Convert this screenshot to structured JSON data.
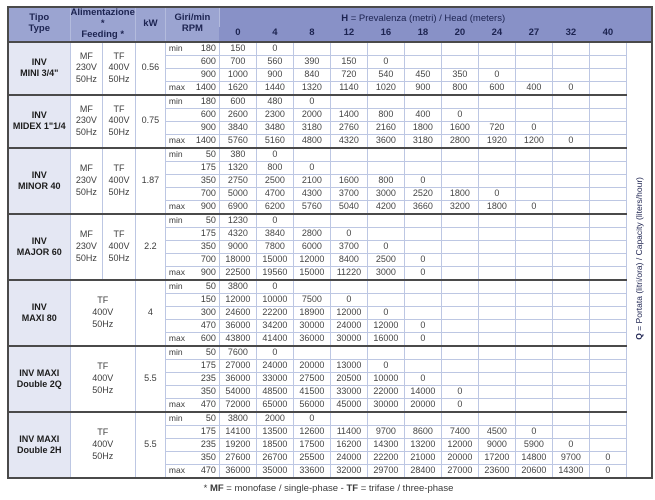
{
  "header": {
    "tipo": [
      "Tipo",
      "Type"
    ],
    "alimentazione": [
      "Alimentazione *",
      "Feeding *"
    ],
    "kw": "kW",
    "rpm": [
      "Giri/min",
      "RPM"
    ],
    "head_title_prefix": "H",
    "head_title_rest": " = Prevalenza (metri) / Head (meters)",
    "head_columns": [
      "0",
      "4",
      "8",
      "12",
      "16",
      "18",
      "20",
      "24",
      "27",
      "32",
      "40"
    ],
    "q_label_prefix": "Q",
    "q_label_rest": " = Portata (litri/ora) / Capacity (liters/hour)"
  },
  "footer": {
    "seg_star": "* ",
    "seg_mf": "MF",
    "seg_mf_text": " = monofase / single-phase - ",
    "seg_tf": "TF",
    "seg_tf_text": " = trifase / three-phase"
  },
  "colors": {
    "header_left_bg": "#9ba4d1",
    "header_band_bg": "#8891c7",
    "model_cell_bg": "#e4e7f3",
    "grid_light": "#bdc7e3",
    "grid_dark": "#4a4a4a",
    "header_text": "#1c2350"
  },
  "table": {
    "blocks": [
      {
        "model": [
          "INV",
          "MINI 3/4\""
        ],
        "feeding": {
          "mf": [
            "MF",
            "230V",
            "50Hz"
          ],
          "tf": [
            "TF",
            "400V",
            "50Hz"
          ]
        },
        "kw": "0.56",
        "rows": [
          {
            "tag": "min",
            "rpm": "180",
            "values": [
              "150",
              "0",
              "",
              "",
              "",
              "",
              "",
              "",
              "",
              "",
              ""
            ]
          },
          {
            "tag": "",
            "rpm": "600",
            "values": [
              "700",
              "560",
              "390",
              "150",
              "0",
              "",
              "",
              "",
              "",
              "",
              ""
            ]
          },
          {
            "tag": "",
            "rpm": "900",
            "values": [
              "1000",
              "900",
              "840",
              "720",
              "540",
              "450",
              "350",
              "0",
              "",
              "",
              ""
            ]
          },
          {
            "tag": "max",
            "rpm": "1400",
            "values": [
              "1620",
              "1440",
              "1320",
              "1140",
              "1020",
              "900",
              "800",
              "600",
              "400",
              "0",
              ""
            ]
          }
        ]
      },
      {
        "model": [
          "INV",
          "MIDEX 1\"1/4"
        ],
        "feeding": {
          "mf": [
            "MF",
            "230V",
            "50Hz"
          ],
          "tf": [
            "TF",
            "400V",
            "50Hz"
          ]
        },
        "kw": "0.75",
        "rows": [
          {
            "tag": "min",
            "rpm": "180",
            "values": [
              "600",
              "480",
              "0",
              "",
              "",
              "",
              "",
              "",
              "",
              "",
              ""
            ]
          },
          {
            "tag": "",
            "rpm": "600",
            "values": [
              "2600",
              "2300",
              "2000",
              "1400",
              "800",
              "400",
              "0",
              "",
              "",
              "",
              ""
            ]
          },
          {
            "tag": "",
            "rpm": "900",
            "values": [
              "3840",
              "3480",
              "3180",
              "2760",
              "2160",
              "1800",
              "1600",
              "720",
              "0",
              "",
              ""
            ]
          },
          {
            "tag": "max",
            "rpm": "1400",
            "values": [
              "5760",
              "5160",
              "4800",
              "4320",
              "3600",
              "3180",
              "2800",
              "1920",
              "1200",
              "0",
              ""
            ]
          }
        ]
      },
      {
        "model": [
          "INV",
          "MINOR 40"
        ],
        "feeding": {
          "mf": [
            "MF",
            "230V",
            "50Hz"
          ],
          "tf": [
            "TF",
            "400V",
            "50Hz"
          ]
        },
        "kw": "1.87",
        "rows": [
          {
            "tag": "min",
            "rpm": "50",
            "values": [
              "380",
              "0",
              "",
              "",
              "",
              "",
              "",
              "",
              "",
              "",
              ""
            ]
          },
          {
            "tag": "",
            "rpm": "175",
            "values": [
              "1320",
              "800",
              "0",
              "",
              "",
              "",
              "",
              "",
              "",
              "",
              ""
            ]
          },
          {
            "tag": "",
            "rpm": "350",
            "values": [
              "2750",
              "2500",
              "2100",
              "1600",
              "800",
              "0",
              "",
              "",
              "",
              "",
              ""
            ]
          },
          {
            "tag": "",
            "rpm": "700",
            "values": [
              "5000",
              "4700",
              "4300",
              "3700",
              "3000",
              "2520",
              "1800",
              "0",
              "",
              "",
              ""
            ]
          },
          {
            "tag": "max",
            "rpm": "900",
            "values": [
              "6900",
              "6200",
              "5760",
              "5040",
              "4200",
              "3660",
              "3200",
              "1800",
              "0",
              "",
              ""
            ]
          }
        ]
      },
      {
        "model": [
          "INV",
          "MAJOR 60"
        ],
        "feeding": {
          "mf": [
            "MF",
            "230V",
            "50Hz"
          ],
          "tf": [
            "TF",
            "400V",
            "50Hz"
          ]
        },
        "kw": "2.2",
        "rows": [
          {
            "tag": "min",
            "rpm": "50",
            "values": [
              "1230",
              "0",
              "",
              "",
              "",
              "",
              "",
              "",
              "",
              "",
              ""
            ]
          },
          {
            "tag": "",
            "rpm": "175",
            "values": [
              "4320",
              "3840",
              "2800",
              "0",
              "",
              "",
              "",
              "",
              "",
              "",
              ""
            ]
          },
          {
            "tag": "",
            "rpm": "350",
            "values": [
              "9000",
              "7800",
              "6000",
              "3700",
              "0",
              "",
              "",
              "",
              "",
              "",
              ""
            ]
          },
          {
            "tag": "",
            "rpm": "700",
            "values": [
              "18000",
              "15000",
              "12000",
              "8400",
              "2500",
              "0",
              "",
              "",
              "",
              "",
              ""
            ]
          },
          {
            "tag": "max",
            "rpm": "900",
            "values": [
              "22500",
              "19560",
              "15000",
              "11220",
              "3000",
              "0",
              "",
              "",
              "",
              "",
              ""
            ]
          }
        ]
      },
      {
        "model": [
          "INV",
          "MAXI 80"
        ],
        "feeding": {
          "single": [
            "TF",
            "400V",
            "50Hz"
          ]
        },
        "kw": "4",
        "rows": [
          {
            "tag": "min",
            "rpm": "50",
            "values": [
              "3800",
              "0",
              "",
              "",
              "",
              "",
              "",
              "",
              "",
              "",
              ""
            ]
          },
          {
            "tag": "",
            "rpm": "150",
            "values": [
              "12000",
              "10000",
              "7500",
              "0",
              "",
              "",
              "",
              "",
              "",
              "",
              ""
            ]
          },
          {
            "tag": "",
            "rpm": "300",
            "values": [
              "24600",
              "22200",
              "18900",
              "12000",
              "0",
              "",
              "",
              "",
              "",
              "",
              ""
            ]
          },
          {
            "tag": "",
            "rpm": "470",
            "values": [
              "36000",
              "34200",
              "30000",
              "24000",
              "12000",
              "0",
              "",
              "",
              "",
              "",
              ""
            ]
          },
          {
            "tag": "max",
            "rpm": "600",
            "values": [
              "43800",
              "41400",
              "36000",
              "30000",
              "16000",
              "0",
              "",
              "",
              "",
              "",
              ""
            ]
          }
        ]
      },
      {
        "model": [
          "INV MAXI",
          "Double 2Q"
        ],
        "feeding": {
          "single": [
            "TF",
            "400V",
            "50Hz"
          ]
        },
        "kw": "5.5",
        "rows": [
          {
            "tag": "min",
            "rpm": "50",
            "values": [
              "7600",
              "0",
              "",
              "",
              "",
              "",
              "",
              "",
              "",
              "",
              ""
            ]
          },
          {
            "tag": "",
            "rpm": "175",
            "values": [
              "27000",
              "24000",
              "20000",
              "13000",
              "0",
              "",
              "",
              "",
              "",
              "",
              ""
            ]
          },
          {
            "tag": "",
            "rpm": "235",
            "values": [
              "36000",
              "33000",
              "27500",
              "20500",
              "10000",
              "0",
              "",
              "",
              "",
              "",
              ""
            ]
          },
          {
            "tag": "",
            "rpm": "350",
            "values": [
              "54000",
              "48500",
              "41500",
              "33000",
              "22000",
              "14000",
              "0",
              "",
              "",
              "",
              ""
            ]
          },
          {
            "tag": "max",
            "rpm": "470",
            "values": [
              "72000",
              "65000",
              "56000",
              "45000",
              "30000",
              "20000",
              "0",
              "",
              "",
              "",
              ""
            ]
          }
        ]
      },
      {
        "model": [
          "INV MAXI",
          "Double 2H"
        ],
        "feeding": {
          "single": [
            "TF",
            "400V",
            "50Hz"
          ]
        },
        "kw": "5.5",
        "rows": [
          {
            "tag": "min",
            "rpm": "50",
            "values": [
              "3800",
              "2000",
              "0",
              "",
              "",
              "",
              "",
              "",
              "",
              "",
              ""
            ]
          },
          {
            "tag": "",
            "rpm": "175",
            "values": [
              "14100",
              "13500",
              "12600",
              "11400",
              "9700",
              "8600",
              "7400",
              "4500",
              "0",
              "",
              ""
            ]
          },
          {
            "tag": "",
            "rpm": "235",
            "values": [
              "19200",
              "18500",
              "17500",
              "16200",
              "14300",
              "13200",
              "12000",
              "9000",
              "5900",
              "0",
              ""
            ]
          },
          {
            "tag": "",
            "rpm": "350",
            "values": [
              "27600",
              "26700",
              "25500",
              "24000",
              "22200",
              "21000",
              "20000",
              "17200",
              "14800",
              "9700",
              "0"
            ]
          },
          {
            "tag": "max",
            "rpm": "470",
            "values": [
              "36000",
              "35000",
              "33600",
              "32000",
              "29700",
              "28400",
              "27000",
              "23600",
              "20600",
              "14300",
              "0"
            ]
          }
        ]
      }
    ]
  }
}
